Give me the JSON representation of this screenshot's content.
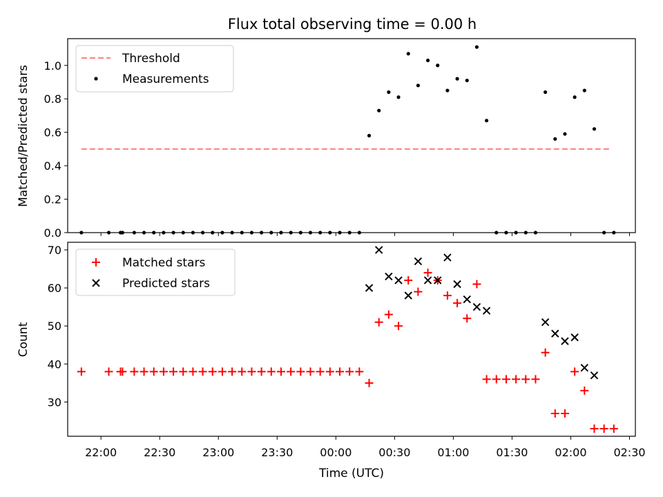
{
  "title": "Flux total observing time = 0.00 h",
  "xlabel": "Time (UTC)",
  "chart_data": [
    {
      "type": "scatter",
      "ylabel": "Matched/Predicted stars",
      "ylim": [
        0,
        1.16
      ],
      "yticks": [
        "0.0",
        "0.2",
        "0.4",
        "0.6",
        "0.8",
        "1.0"
      ],
      "ytick_values": [
        0,
        0.2,
        0.4,
        0.6,
        0.8,
        1.0
      ],
      "legend": {
        "placement": "top-left"
      },
      "series": [
        {
          "name": "Threshold",
          "style": "dashed-line",
          "color": "#ff7f7f",
          "x": [
            "21:50",
            "02:20"
          ],
          "y": [
            0.5,
            0.5
          ]
        },
        {
          "name": "Measurements",
          "style": "dot",
          "color": "#000000",
          "x": [
            "21:50",
            "22:04",
            "22:10",
            "22:11",
            "22:17",
            "22:22",
            "22:27",
            "22:32",
            "22:37",
            "22:42",
            "22:47",
            "22:52",
            "22:57",
            "23:02",
            "23:07",
            "23:12",
            "23:17",
            "23:22",
            "23:27",
            "23:32",
            "23:37",
            "23:42",
            "23:47",
            "23:52",
            "23:57",
            "00:02",
            "00:07",
            "00:12",
            "00:17",
            "00:22",
            "00:27",
            "00:32",
            "00:37",
            "00:42",
            "00:47",
            "00:52",
            "00:57",
            "01:02",
            "01:07",
            "01:12",
            "01:17",
            "01:22",
            "01:27",
            "01:32",
            "01:37",
            "01:42",
            "01:47",
            "01:52",
            "01:57",
            "02:02",
            "02:07",
            "02:12",
            "02:17",
            "02:22"
          ],
          "y": [
            0,
            0,
            0,
            0,
            0,
            0,
            0,
            0,
            0,
            0,
            0,
            0,
            0,
            0,
            0,
            0,
            0,
            0,
            0,
            0,
            0,
            0,
            0,
            0,
            0,
            0,
            0,
            0,
            0.58,
            0.73,
            0.84,
            0.81,
            1.07,
            0.88,
            1.03,
            1.0,
            0.85,
            0.92,
            0.91,
            1.11,
            0.67,
            0,
            0,
            0,
            0,
            0,
            0.84,
            0.56,
            0.59,
            0.81,
            0.85,
            0.62,
            0,
            0
          ]
        }
      ]
    },
    {
      "type": "scatter",
      "ylabel": "Count",
      "ylim": [
        21,
        72
      ],
      "yticks": [
        "30",
        "40",
        "50",
        "60",
        "70"
      ],
      "ytick_values": [
        30,
        40,
        50,
        60,
        70
      ],
      "xlim": [
        "21:43",
        "02:33"
      ],
      "xticks": [
        "22:00",
        "22:30",
        "23:00",
        "23:30",
        "00:00",
        "00:30",
        "01:00",
        "01:30",
        "02:00",
        "02:30"
      ],
      "legend": {
        "placement": "top-left"
      },
      "series": [
        {
          "name": "Matched stars",
          "marker": "plus",
          "color": "#ff0000",
          "x": [
            "21:50",
            "22:04",
            "22:10",
            "22:11",
            "22:17",
            "22:22",
            "22:27",
            "22:32",
            "22:37",
            "22:42",
            "22:47",
            "22:52",
            "22:57",
            "23:02",
            "23:07",
            "23:12",
            "23:17",
            "23:22",
            "23:27",
            "23:32",
            "23:37",
            "23:42",
            "23:47",
            "23:52",
            "23:57",
            "00:02",
            "00:07",
            "00:12",
            "00:17",
            "00:22",
            "00:27",
            "00:32",
            "00:37",
            "00:42",
            "00:47",
            "00:52",
            "00:57",
            "01:02",
            "01:07",
            "01:12",
            "01:17",
            "01:22",
            "01:27",
            "01:32",
            "01:37",
            "01:42",
            "01:47",
            "01:52",
            "01:57",
            "02:02",
            "02:07",
            "02:12",
            "02:17",
            "02:22"
          ],
          "y": [
            38,
            38,
            38,
            38,
            38,
            38,
            38,
            38,
            38,
            38,
            38,
            38,
            38,
            38,
            38,
            38,
            38,
            38,
            38,
            38,
            38,
            38,
            38,
            38,
            38,
            38,
            38,
            38,
            35,
            51,
            53,
            50,
            62,
            59,
            64,
            62,
            58,
            56,
            52,
            61,
            36,
            36,
            36,
            36,
            36,
            36,
            43,
            27,
            27,
            38,
            33,
            23,
            23,
            23
          ]
        },
        {
          "name": "Predicted stars",
          "marker": "x",
          "color": "#000000",
          "x": [
            "00:17",
            "00:22",
            "00:27",
            "00:32",
            "00:37",
            "00:42",
            "00:47",
            "00:52",
            "00:57",
            "01:02",
            "01:07",
            "01:12",
            "01:17",
            "01:47",
            "01:52",
            "01:57",
            "02:02",
            "02:07",
            "02:12"
          ],
          "y": [
            60,
            70,
            63,
            62,
            58,
            67,
            62,
            62,
            68,
            61,
            57,
            55,
            54,
            51,
            48,
            46,
            47,
            39,
            37
          ]
        }
      ]
    }
  ]
}
